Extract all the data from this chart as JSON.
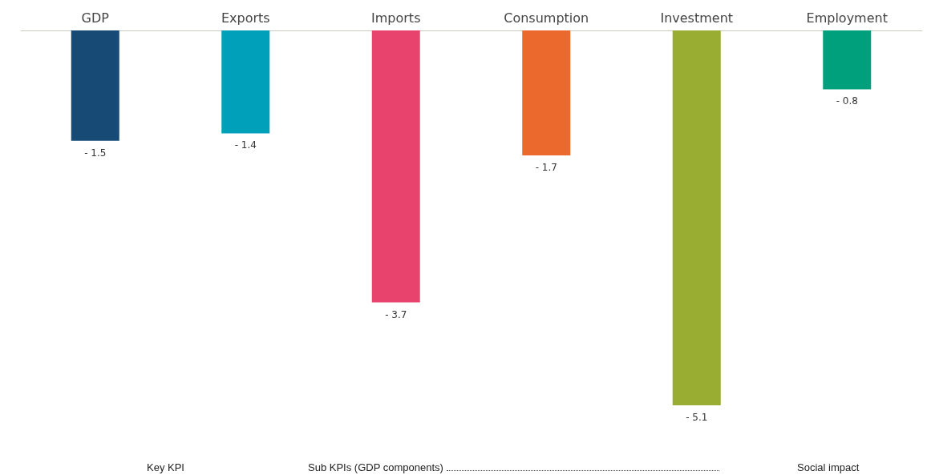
{
  "chart_data": {
    "type": "bar",
    "categories": [
      "GDP",
      "Exports",
      "Imports",
      "Consumption",
      "Investment",
      "Employment"
    ],
    "values": [
      -1.5,
      -1.4,
      -3.7,
      -1.7,
      -5.1,
      -0.8
    ],
    "value_labels": [
      "- 1.5",
      "- 1.4",
      "- 3.7",
      "- 1.7",
      "- 5.1",
      "- 0.8"
    ],
    "colors": [
      "#174a75",
      "#00a0bb",
      "#e8436d",
      "#eb692d",
      "#9aad33",
      "#00a07c"
    ],
    "annotations": [
      "Key KPI",
      "Sub KPIs (GDP components)",
      "Social impact"
    ]
  }
}
